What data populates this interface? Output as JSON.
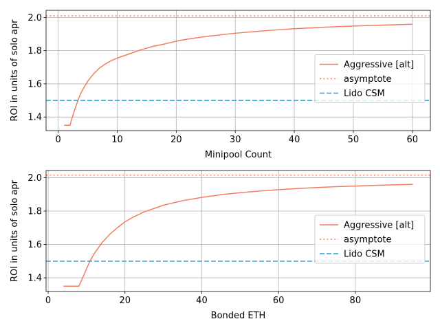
{
  "chart_data": [
    {
      "type": "line",
      "xlabel": "Minipool Count",
      "ylabel": "ROI in units of solo apr",
      "xlim": [
        -2.05,
        63.05
      ],
      "ylim": [
        1.318,
        2.043
      ],
      "xticks": [
        0,
        10,
        20,
        30,
        40,
        50,
        60
      ],
      "yticks": [
        1.4,
        1.6,
        1.8,
        2.0
      ],
      "yticks_labels": [
        "1.4",
        "1.6",
        "1.8",
        "2.0"
      ],
      "grid": true,
      "legend_position": "center-right",
      "series": [
        {
          "name": "Aggressive [alt]",
          "style": "solid",
          "color": "#f47c5f",
          "x": [
            1,
            2,
            2.5,
            3,
            3.5,
            4,
            5,
            6,
            7,
            8,
            9,
            10,
            12,
            14,
            16,
            18,
            20,
            22,
            25,
            30,
            35,
            40,
            45,
            50,
            55,
            60
          ],
          "y": [
            1.35,
            1.35,
            1.41,
            1.465,
            1.515,
            1.555,
            1.615,
            1.66,
            1.695,
            1.72,
            1.74,
            1.755,
            1.78,
            1.805,
            1.825,
            1.84,
            1.857,
            1.87,
            1.885,
            1.905,
            1.92,
            1.932,
            1.941,
            1.948,
            1.954,
            1.959
          ]
        },
        {
          "name": "asymptote",
          "style": "dotted",
          "color": "#f47c5f",
          "y": 2.01
        },
        {
          "name": "Lido CSM",
          "style": "dashed",
          "color": "#1aa7e6",
          "y": 1.5
        }
      ]
    },
    {
      "type": "line",
      "xlabel": "Bonded ETH",
      "ylabel": "ROI in units of solo apr",
      "xlim": [
        -0.55,
        99.55
      ],
      "ylim": [
        1.318,
        2.043
      ],
      "xticks": [
        0,
        20,
        40,
        60,
        80
      ],
      "yticks": [
        1.4,
        1.6,
        1.8,
        2.0
      ],
      "yticks_labels": [
        "1.4",
        "1.6",
        "1.8",
        "2.0"
      ],
      "grid": true,
      "legend_position": "center-right",
      "series": [
        {
          "name": "Aggressive [alt]",
          "style": "solid",
          "color": "#f47c5f",
          "x": [
            4,
            8,
            9,
            10,
            11,
            12,
            14,
            16,
            18,
            20,
            22,
            25,
            30,
            35,
            40,
            45,
            50,
            55,
            60,
            65,
            70,
            75,
            80,
            85,
            90,
            95
          ],
          "y": [
            1.35,
            1.35,
            1.4,
            1.455,
            1.505,
            1.545,
            1.61,
            1.66,
            1.7,
            1.735,
            1.762,
            1.795,
            1.835,
            1.862,
            1.882,
            1.898,
            1.91,
            1.92,
            1.928,
            1.935,
            1.941,
            1.946,
            1.95,
            1.954,
            1.957,
            1.96
          ]
        },
        {
          "name": "asymptote",
          "style": "dotted",
          "color": "#f47c5f",
          "y": 2.015
        },
        {
          "name": "Lido CSM",
          "style": "dashed",
          "color": "#1aa7e6",
          "y": 1.5
        }
      ]
    }
  ]
}
